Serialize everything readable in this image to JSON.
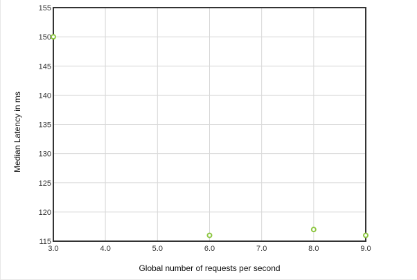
{
  "colors": {
    "marker": "#8cc63f",
    "grid": "#d9d9d9",
    "axis": "#333333"
  },
  "chart_data": {
    "type": "scatter",
    "title": "",
    "xlabel": "Global number of requests per second",
    "ylabel": "Median Latency in ms",
    "xlim": [
      3.0,
      9.0
    ],
    "ylim": [
      115,
      155
    ],
    "xticks": [
      "3.0",
      "4.0",
      "5.0",
      "6.0",
      "7.0",
      "8.0",
      "9.0"
    ],
    "yticks": [
      "115",
      "120",
      "125",
      "130",
      "135",
      "140",
      "145",
      "150",
      "155"
    ],
    "grid": true,
    "legend": "none",
    "series": [
      {
        "points": [
          {
            "x": 3.0,
            "y": 150
          },
          {
            "x": 6.0,
            "y": 116
          },
          {
            "x": 8.0,
            "y": 117
          },
          {
            "x": 9.0,
            "y": 116
          }
        ]
      }
    ]
  }
}
